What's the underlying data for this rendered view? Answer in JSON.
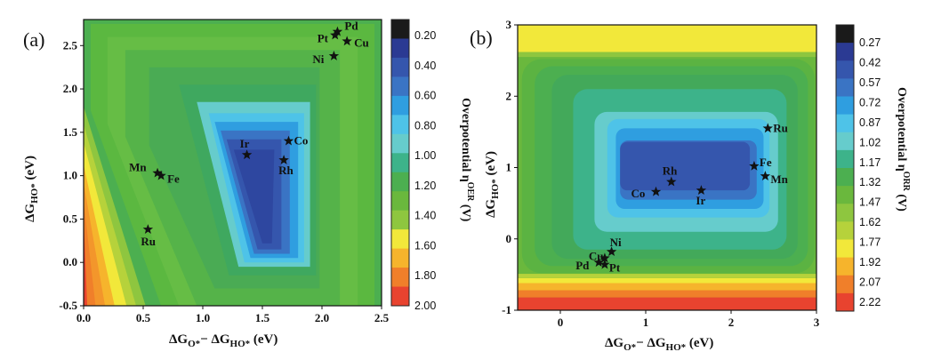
{
  "chart_data": [
    {
      "type": "heatmap",
      "panel_label": "(a)",
      "x_axis": {
        "label": "ΔGO*− ΔGHO* (eV)",
        "range": [
          0.0,
          2.5
        ],
        "ticks": [
          "0.0",
          "0.5",
          "1.0",
          "1.5",
          "2.0",
          "2.5"
        ]
      },
      "y_axis": {
        "label": "ΔGHO* (eV)",
        "range": [
          -0.5,
          2.8
        ],
        "ticks": [
          "-0.5",
          "0.0",
          "0.5",
          "1.0",
          "1.5",
          "2.0",
          "2.5"
        ]
      },
      "colorbar": {
        "title": "Overpotential ηOER (V)",
        "levels": [
          "0.20",
          "0.40",
          "0.60",
          "0.80",
          "1.00",
          "1.20",
          "1.40",
          "1.60",
          "1.80",
          "2.00"
        ],
        "colors": [
          "#1a1a1a",
          "#2b3a93",
          "#3556ad",
          "#3a74c4",
          "#2f9ee0",
          "#4ec3e8",
          "#66cccc",
          "#3db38a",
          "#4caf50",
          "#6ab83d",
          "#8ec63f",
          "#f2e83a",
          "#f6b42c",
          "#f07f2a",
          "#e8432f"
        ]
      },
      "points": [
        {
          "name": "Pd",
          "x": 2.13,
          "y": 2.66
        },
        {
          "name": "Pt",
          "x": 2.11,
          "y": 2.62
        },
        {
          "name": "Cu",
          "x": 2.21,
          "y": 2.55
        },
        {
          "name": "Ni",
          "x": 2.1,
          "y": 2.38
        },
        {
          "name": "Co",
          "x": 1.72,
          "y": 1.4
        },
        {
          "name": "Ir",
          "x": 1.37,
          "y": 1.24
        },
        {
          "name": "Rh",
          "x": 1.68,
          "y": 1.18
        },
        {
          "name": "Mn",
          "x": 0.62,
          "y": 1.03
        },
        {
          "name": "Fe",
          "x": 0.65,
          "y": 1.0
        },
        {
          "name": "Ru",
          "x": 0.54,
          "y": 0.38
        }
      ]
    },
    {
      "type": "heatmap",
      "panel_label": "(b)",
      "x_axis": {
        "label": "ΔGO*− ΔGHO* (eV)",
        "range": [
          -0.5,
          3.0
        ],
        "ticks": [
          "0",
          "1",
          "2",
          "3"
        ]
      },
      "y_axis": {
        "label": "ΔGHO* (eV)",
        "range": [
          -1.0,
          3.0
        ],
        "ticks": [
          "-1",
          "0",
          "1",
          "2",
          "3"
        ]
      },
      "colorbar": {
        "title": "Overpotential ηORR (V)",
        "levels": [
          "0.27",
          "0.42",
          "0.57",
          "0.72",
          "0.87",
          "1.02",
          "1.17",
          "1.32",
          "1.47",
          "1.62",
          "1.77",
          "1.92",
          "2.07",
          "2.22"
        ],
        "colors": [
          "#1a1a1a",
          "#2b3a93",
          "#3556ad",
          "#3a74c4",
          "#2f9ee0",
          "#4ec3e8",
          "#66cccc",
          "#3db38a",
          "#4caf50",
          "#6ab83d",
          "#8ec63f",
          "#b6d23b",
          "#f2e83a",
          "#f6b42c",
          "#f07f2a",
          "#e8432f"
        ]
      },
      "points": [
        {
          "name": "Ru",
          "x": 2.43,
          "y": 1.55
        },
        {
          "name": "Fe",
          "x": 2.27,
          "y": 1.02
        },
        {
          "name": "Mn",
          "x": 2.4,
          "y": 0.88
        },
        {
          "name": "Rh",
          "x": 1.3,
          "y": 0.8
        },
        {
          "name": "Co",
          "x": 1.12,
          "y": 0.66
        },
        {
          "name": "Ir",
          "x": 1.65,
          "y": 0.68
        },
        {
          "name": "Ni",
          "x": 0.6,
          "y": -0.18
        },
        {
          "name": "Cu",
          "x": 0.52,
          "y": -0.27
        },
        {
          "name": "Pd",
          "x": 0.45,
          "y": -0.33
        },
        {
          "name": "Pt",
          "x": 0.52,
          "y": -0.36
        }
      ]
    }
  ]
}
